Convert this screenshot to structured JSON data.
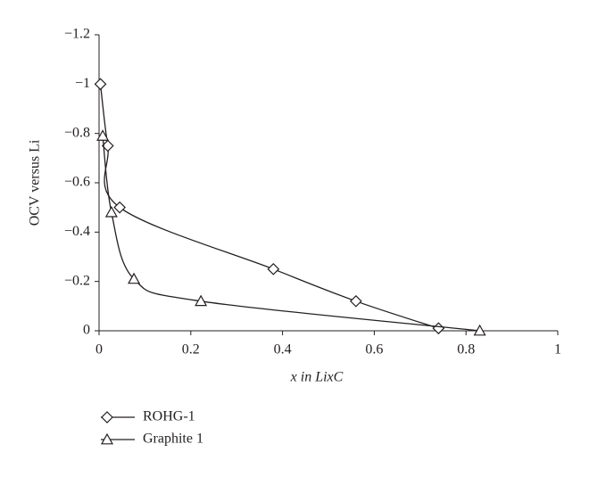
{
  "chart_data": {
    "type": "line",
    "xlabel": "x in LixC",
    "ylabel": "OCV versus Li",
    "xlim": [
      0,
      1
    ],
    "xticks": [
      0,
      0.2,
      0.4,
      0.6,
      0.8,
      1
    ],
    "ylim": [
      0,
      -1.2
    ],
    "yticks": [
      0,
      {
        "value": -0.2,
        "label": "−0.2"
      },
      {
        "value": -0.4,
        "label": "−0.4"
      },
      {
        "value": -0.6,
        "label": "−0.6"
      },
      {
        "value": -0.8,
        "label": "−0.8"
      },
      {
        "value": -1,
        "label": "−1"
      },
      {
        "value": -1.2,
        "label": "−1.2"
      }
    ],
    "grid": false,
    "series": [
      {
        "name": "ROHG-1",
        "color": "#231f20",
        "marker": "diamond",
        "x": [
          0.003,
          0.019,
          0.045,
          0.38,
          0.56,
          0.74
        ],
        "values": [
          -1.0,
          -0.75,
          -0.5,
          -0.25,
          -0.12,
          -0.01
        ]
      },
      {
        "name": "Graphite 1",
        "color": "#231f20",
        "marker": "triangle",
        "x": [
          0.008,
          0.027,
          0.076,
          0.222,
          0.83
        ],
        "values": [
          -0.79,
          -0.48,
          -0.21,
          -0.12,
          0
        ]
      }
    ]
  }
}
